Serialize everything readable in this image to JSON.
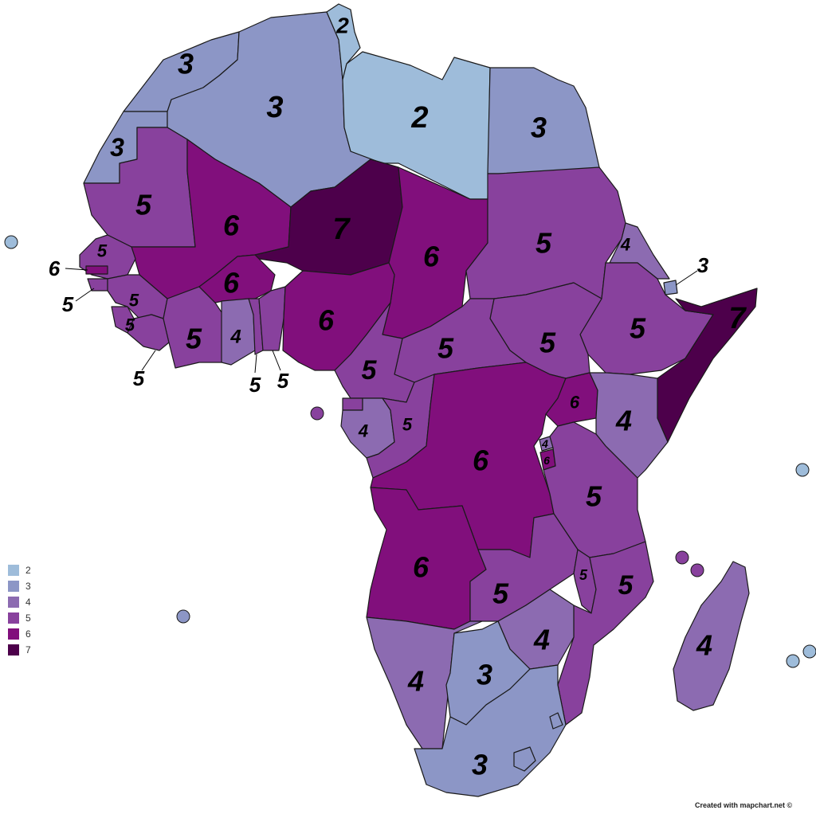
{
  "colors": {
    "2": "#9ebcda",
    "3": "#8c96c6",
    "4": "#8c6bb1",
    "5": "#88419d",
    "6": "#810f7c",
    "7": "#4d004b"
  },
  "legend": [
    {
      "value": "2",
      "label": "2"
    },
    {
      "value": "3",
      "label": "3"
    },
    {
      "value": "4",
      "label": "4"
    },
    {
      "value": "5",
      "label": "5"
    },
    {
      "value": "6",
      "label": "6"
    },
    {
      "value": "7",
      "label": "7"
    }
  ],
  "credit": "Created with mapchart.net ©",
  "regions": [
    {
      "id": "morocco",
      "value": "3",
      "label": "3"
    },
    {
      "id": "western-sahara",
      "value": "3",
      "label": "3"
    },
    {
      "id": "algeria",
      "value": "3",
      "label": "3"
    },
    {
      "id": "tunisia",
      "value": "2",
      "label": "2"
    },
    {
      "id": "libya",
      "value": "2",
      "label": "2"
    },
    {
      "id": "egypt",
      "value": "3",
      "label": "3"
    },
    {
      "id": "mauritania",
      "value": "5",
      "label": "5"
    },
    {
      "id": "mali",
      "value": "6",
      "label": "6"
    },
    {
      "id": "niger",
      "value": "7",
      "label": "7"
    },
    {
      "id": "chad",
      "value": "6",
      "label": "6"
    },
    {
      "id": "sudan",
      "value": "5",
      "label": "5"
    },
    {
      "id": "eritrea",
      "value": "4",
      "label": "4"
    },
    {
      "id": "djibouti",
      "value": "3",
      "label": "3"
    },
    {
      "id": "somalia",
      "value": "7",
      "label": "7"
    },
    {
      "id": "ethiopia",
      "value": "5",
      "label": "5"
    },
    {
      "id": "south-sudan",
      "value": "5",
      "label": "5"
    },
    {
      "id": "car",
      "value": "5",
      "label": "5"
    },
    {
      "id": "senegal",
      "value": "5",
      "label": "5"
    },
    {
      "id": "gambia",
      "value": "6",
      "label": "6"
    },
    {
      "id": "guinea-bissau",
      "value": "5",
      "label": "5"
    },
    {
      "id": "guinea",
      "value": "5",
      "label": "5"
    },
    {
      "id": "sierra-leone",
      "value": "5",
      "label": "5"
    },
    {
      "id": "liberia",
      "value": "5",
      "label": "5"
    },
    {
      "id": "ivory-coast",
      "value": "5",
      "label": "5"
    },
    {
      "id": "burkina-faso",
      "value": "6",
      "label": "6"
    },
    {
      "id": "ghana",
      "value": "4",
      "label": "4"
    },
    {
      "id": "togo",
      "value": "5",
      "label": "5"
    },
    {
      "id": "benin",
      "value": "5",
      "label": "5"
    },
    {
      "id": "nigeria",
      "value": "6",
      "label": "6"
    },
    {
      "id": "cameroon",
      "value": "5",
      "label": "5"
    },
    {
      "id": "equatorial-guinea",
      "value": "5",
      "label": ""
    },
    {
      "id": "gabon",
      "value": "4",
      "label": "4"
    },
    {
      "id": "congo",
      "value": "5",
      "label": "5"
    },
    {
      "id": "drc",
      "value": "6",
      "label": "6"
    },
    {
      "id": "uganda",
      "value": "6",
      "label": "6"
    },
    {
      "id": "kenya",
      "value": "4",
      "label": "4"
    },
    {
      "id": "rwanda",
      "value": "4",
      "label": "4"
    },
    {
      "id": "burundi",
      "value": "6",
      "label": "6"
    },
    {
      "id": "tanzania",
      "value": "5",
      "label": "5"
    },
    {
      "id": "angola",
      "value": "6",
      "label": "6"
    },
    {
      "id": "zambia",
      "value": "5",
      "label": "5"
    },
    {
      "id": "malawi",
      "value": "5",
      "label": "5"
    },
    {
      "id": "mozambique",
      "value": "5",
      "label": "5"
    },
    {
      "id": "zimbabwe",
      "value": "4",
      "label": "4"
    },
    {
      "id": "namibia",
      "value": "4",
      "label": "4"
    },
    {
      "id": "botswana",
      "value": "3",
      "label": "3"
    },
    {
      "id": "south-africa",
      "value": "3",
      "label": "3"
    },
    {
      "id": "lesotho",
      "value": "3",
      "label": ""
    },
    {
      "id": "eswatini",
      "value": "3",
      "label": ""
    },
    {
      "id": "madagascar",
      "value": "4",
      "label": "4"
    },
    {
      "id": "cape-verde",
      "value": "2",
      "label": ""
    },
    {
      "id": "sao-tome",
      "value": "5",
      "label": ""
    },
    {
      "id": "st-helena",
      "value": "3",
      "label": ""
    },
    {
      "id": "seychelles",
      "value": "2",
      "label": ""
    },
    {
      "id": "comoros-1",
      "value": "5",
      "label": ""
    },
    {
      "id": "comoros-2",
      "value": "5",
      "label": ""
    },
    {
      "id": "mauritius-1",
      "value": "2",
      "label": ""
    },
    {
      "id": "mauritius-2",
      "value": "2",
      "label": ""
    }
  ]
}
